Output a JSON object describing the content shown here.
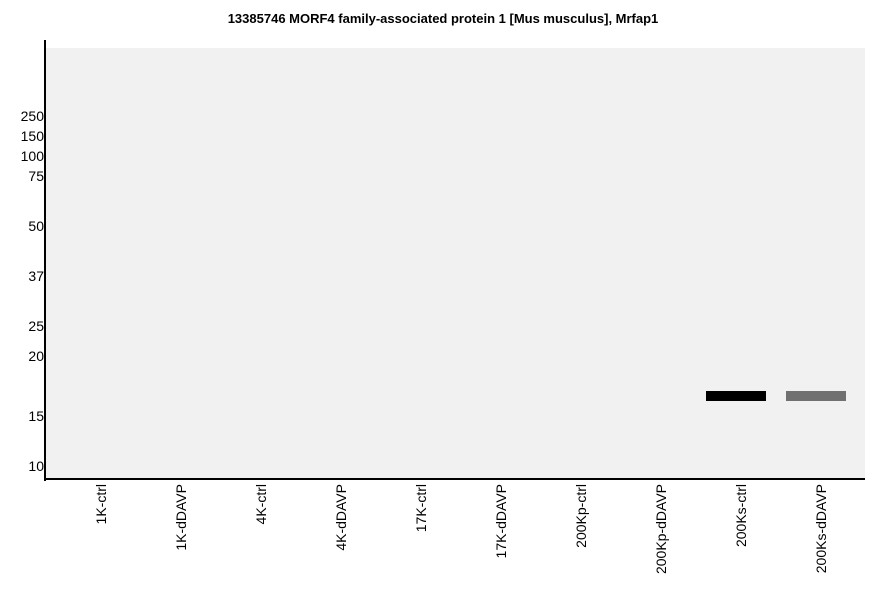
{
  "chart_data": {
    "type": "heatmap",
    "title": "13385746 MORF4 family-associated protein 1 [Mus musculus], Mrfap1",
    "xlabel": "",
    "ylabel": "",
    "y_scale": "molecular weight (kDa), log-like gel scale",
    "y_ticks": [
      "250",
      "150",
      "100",
      "75",
      "50",
      "37",
      "25",
      "20",
      "15",
      "10"
    ],
    "lanes": [
      "1K-ctrl",
      "1K-dDAVP",
      "4K-ctrl",
      "4K-dDAVP",
      "17K-ctrl",
      "17K-dDAVP",
      "200Kp-ctrl",
      "200Kp-dDAVP",
      "200Ks-ctrl",
      "200Ks-dDAVP"
    ],
    "bands": [
      {
        "lane": "200Ks-ctrl",
        "mw_kda": 16.5,
        "intensity": 1.0
      },
      {
        "lane": "200Ks-dDAVP",
        "mw_kda": 16.5,
        "intensity": 0.56
      }
    ],
    "grid": false,
    "background_color": "#f1f1f1"
  }
}
